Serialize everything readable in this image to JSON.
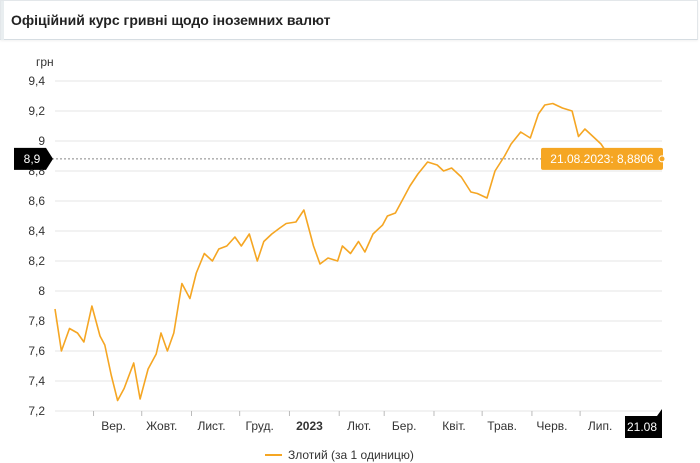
{
  "header": {
    "title": "Офіційний курс гривні щодо іноземних валют"
  },
  "colors": {
    "series": "#f5a623",
    "tooltip_bg": "#f5a623",
    "cursor_bg": "#000000",
    "grid": "#e6e6e6"
  },
  "chart_data": {
    "type": "line",
    "ylabel": "грн",
    "ylim": [
      7.2,
      9.4
    ],
    "yticks": [
      "7,2",
      "7,4",
      "7,6",
      "7,8",
      "8",
      "8,2",
      "8,4",
      "8,6",
      "8,8",
      "9",
      "9,2",
      "9,4"
    ],
    "xticks": [
      {
        "label": "Вер.",
        "date": "2022-09-01",
        "bold": false
      },
      {
        "label": "Жовт.",
        "date": "2022-10-01",
        "bold": false
      },
      {
        "label": "Лист.",
        "date": "2022-11-01",
        "bold": false
      },
      {
        "label": "Груд.",
        "date": "2022-12-01",
        "bold": false
      },
      {
        "label": "2023",
        "date": "2023-01-01",
        "bold": true
      },
      {
        "label": "Лют.",
        "date": "2023-02-01",
        "bold": false
      },
      {
        "label": "Бер.",
        "date": "2023-03-01",
        "bold": false
      },
      {
        "label": "Квіт.",
        "date": "2023-04-01",
        "bold": false
      },
      {
        "label": "Трав.",
        "date": "2023-05-01",
        "bold": false
      },
      {
        "label": "Черв.",
        "date": "2023-06-01",
        "bold": false
      },
      {
        "label": "Лип.",
        "date": "2023-07-01",
        "bold": false
      }
    ],
    "xlim": [
      "2022-08-08",
      "2023-08-21"
    ],
    "series": [
      {
        "name": "Злотий (за 1 одиницю)",
        "x": [
          "2022-08-08",
          "2022-08-12",
          "2022-08-17",
          "2022-08-22",
          "2022-08-26",
          "2022-08-31",
          "2022-09-05",
          "2022-09-08",
          "2022-09-12",
          "2022-09-16",
          "2022-09-20",
          "2022-09-26",
          "2022-09-30",
          "2022-10-05",
          "2022-10-10",
          "2022-10-13",
          "2022-10-17",
          "2022-10-21",
          "2022-10-26",
          "2022-10-31",
          "2022-11-04",
          "2022-11-09",
          "2022-11-14",
          "2022-11-18",
          "2022-11-23",
          "2022-11-28",
          "2022-12-02",
          "2022-12-07",
          "2022-12-12",
          "2022-12-16",
          "2022-12-21",
          "2022-12-26",
          "2022-12-30",
          "2023-01-05",
          "2023-01-10",
          "2023-01-16",
          "2023-01-20",
          "2023-01-25",
          "2023-01-31",
          "2023-02-03",
          "2023-02-08",
          "2023-02-13",
          "2023-02-17",
          "2023-02-22",
          "2023-02-28",
          "2023-03-03",
          "2023-03-08",
          "2023-03-13",
          "2023-03-17",
          "2023-03-22",
          "2023-03-28",
          "2023-04-03",
          "2023-04-07",
          "2023-04-12",
          "2023-04-18",
          "2023-04-24",
          "2023-04-28",
          "2023-05-04",
          "2023-05-09",
          "2023-05-15",
          "2023-05-19",
          "2023-05-25",
          "2023-05-31",
          "2023-06-05",
          "2023-06-09",
          "2023-06-14",
          "2023-06-20",
          "2023-06-26",
          "2023-06-30",
          "2023-07-04",
          "2023-07-10",
          "2023-07-14",
          "2023-07-19",
          "2023-07-25",
          "2023-07-31",
          "2023-08-04",
          "2023-08-09",
          "2023-08-15",
          "2023-08-21"
        ],
        "values": [
          7.88,
          7.6,
          7.75,
          7.72,
          7.66,
          7.9,
          7.7,
          7.64,
          7.44,
          7.27,
          7.35,
          7.52,
          7.28,
          7.48,
          7.58,
          7.72,
          7.6,
          7.72,
          8.05,
          7.95,
          8.12,
          8.25,
          8.2,
          8.28,
          8.3,
          8.36,
          8.3,
          8.38,
          8.2,
          8.33,
          8.38,
          8.42,
          8.45,
          8.46,
          8.54,
          8.3,
          8.18,
          8.22,
          8.2,
          8.3,
          8.25,
          8.33,
          8.26,
          8.38,
          8.44,
          8.5,
          8.52,
          8.62,
          8.7,
          8.78,
          8.86,
          8.84,
          8.8,
          8.82,
          8.76,
          8.66,
          8.65,
          8.62,
          8.8,
          8.9,
          8.98,
          9.06,
          9.02,
          9.18,
          9.24,
          9.25,
          9.22,
          9.2,
          9.03,
          9.08,
          9.02,
          8.98,
          8.9,
          8.88,
          8.9,
          8.92,
          8.89,
          8.9,
          8.8806
        ]
      }
    ],
    "tooltip": {
      "text": "21.08.2023: 8,8806"
    },
    "cursor": {
      "y_label": "8,9",
      "x_label": "21.08",
      "value": 8.8806
    },
    "grid": true,
    "legend": "bottom-center"
  }
}
